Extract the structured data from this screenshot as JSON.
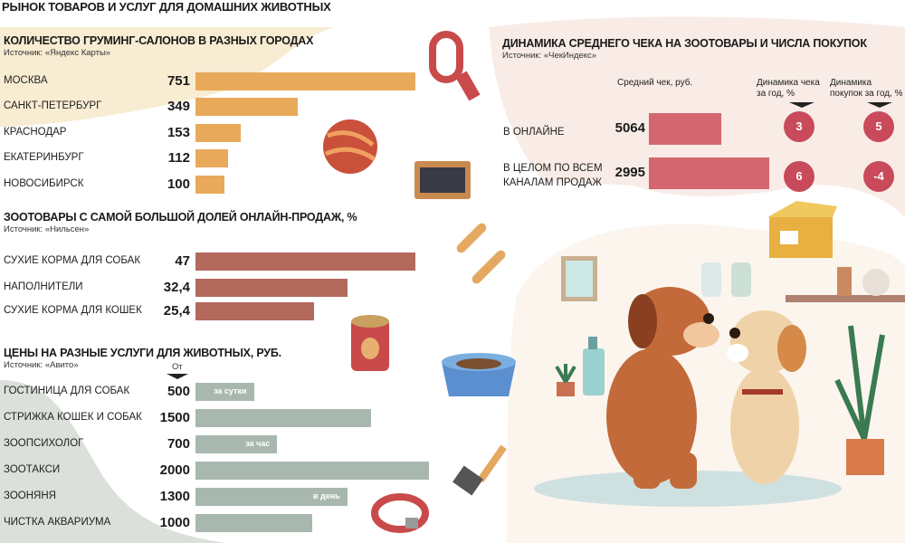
{
  "title": "РЫНОК ТОВАРОВ И УСЛУГ ДЛЯ ДОМАШНИХ ЖИВОТНЫХ",
  "chart_data": [
    {
      "type": "bar",
      "title": "КОЛИЧЕСТВО ГРУМИНГ-САЛОНОВ В РАЗНЫХ ГОРОДАХ",
      "source": "Источник: «Яндекс Карты»",
      "categories": [
        "МОСКВА",
        "САНКТ-ПЕТЕРБУРГ",
        "КРАСНОДАР",
        "ЕКАТЕРИНБУРГ",
        "НОВОСИБИРСК"
      ],
      "values": [
        751,
        349,
        153,
        112,
        100
      ],
      "labels": [
        "751",
        "349",
        "153",
        "112",
        "100"
      ],
      "color": "#e9a95a"
    },
    {
      "type": "bar",
      "title": "ЗООТОВАРЫ С САМОЙ БОЛЬШОЙ ДОЛЕЙ ОНЛАЙН-ПРОДАЖ, %",
      "source": "Источник: «Нильсен»",
      "categories": [
        "СУХИЕ КОРМА ДЛЯ СОБАК",
        "НАПОЛНИТЕЛИ",
        "СУХИЕ КОРМА ДЛЯ КОШЕК"
      ],
      "values": [
        47,
        32.4,
        25.4
      ],
      "labels": [
        "47",
        "32,4",
        "25,4"
      ],
      "color": "#b4695d"
    },
    {
      "type": "bar",
      "title": "ЦЕНЫ НА РАЗНЫЕ УСЛУГИ ДЛЯ ЖИВОТНЫХ, РУБ.",
      "source": "Источник: «Авито»",
      "from_label": "От",
      "categories": [
        "ГОСТИНИЦА ДЛЯ СОБАК",
        "СТРИЖКА КОШЕК И СОБАК",
        "ЗООПСИХОЛОГ",
        "ЗООТАКСИ",
        "ЗООНЯНЯ",
        "ЧИСТКА АКВАРИУМА"
      ],
      "values": [
        500,
        1500,
        700,
        2000,
        1300,
        1000
      ],
      "labels": [
        "500",
        "1500",
        "700",
        "2000",
        "1300",
        "1000"
      ],
      "notes": [
        "за сутки",
        "",
        "за час",
        "",
        "в день",
        ""
      ],
      "color": "#a8b8af"
    },
    {
      "type": "table",
      "title": "ДИНАМИКА СРЕДНЕГО ЧЕКА НА ЗООТОВАРЫ И ЧИСЛА ПОКУПОК",
      "source": "Источник: «ЧекИндекс»",
      "columns": [
        "Средний чек, руб.",
        "Динамика чека за год, %",
        "Динамика покупок за год, %"
      ],
      "rows": [
        {
          "label": "В ОНЛАЙНЕ",
          "check": "5064",
          "check_bar": 0.6,
          "check_change": "3",
          "purchases_change": "5"
        },
        {
          "label": "В ЦЕЛОМ ПО ВСЕМ КАНАЛАМ ПРОДАЖ",
          "check": "2995",
          "check_bar": 1.0,
          "check_change": "6",
          "purchases_change": "-4"
        }
      ],
      "color": "#d4666f",
      "circle_color": "#c94a5a"
    }
  ]
}
